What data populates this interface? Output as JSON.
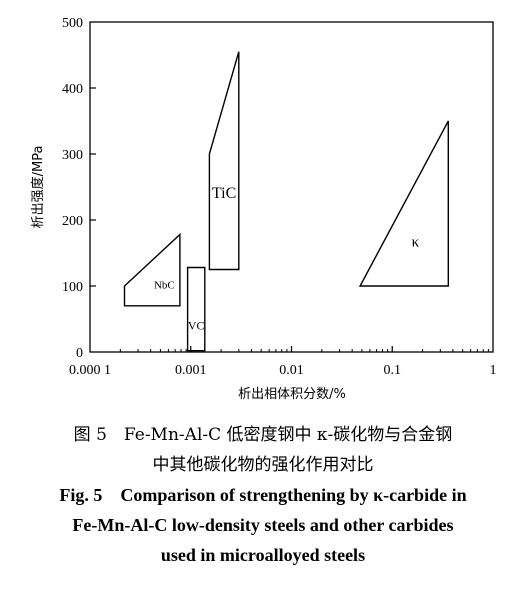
{
  "chart_data": {
    "type": "area",
    "title": "",
    "xlabel": "析出相体积分数/%",
    "ylabel": "析出强度/MPa",
    "x_scale": "log",
    "xlim": [
      0.0001,
      1
    ],
    "ylim": [
      0,
      500
    ],
    "x_ticks": [
      0.0001,
      0.001,
      0.01,
      0.1,
      1
    ],
    "x_tick_labels": [
      "0.000 1",
      "0.001",
      "0.01",
      "0.1",
      "1"
    ],
    "y_ticks": [
      0,
      100,
      200,
      300,
      400,
      500
    ],
    "y_tick_labels": [
      "0",
      "100",
      "200",
      "300",
      "400",
      "500"
    ],
    "grid": false,
    "legend": "none",
    "regions": [
      {
        "label": "NbC",
        "points": [
          [
            0.00022,
            100
          ],
          [
            0.00078,
            178
          ],
          [
            0.00078,
            70
          ],
          [
            0.00022,
            70
          ],
          [
            0.00022,
            100
          ]
        ]
      },
      {
        "label": "VC",
        "points": [
          [
            0.00093,
            128
          ],
          [
            0.00138,
            128
          ],
          [
            0.00138,
            2
          ],
          [
            0.00093,
            2
          ]
        ]
      },
      {
        "label": "TiC",
        "points": [
          [
            0.00153,
            300
          ],
          [
            0.003,
            455
          ],
          [
            0.003,
            125
          ],
          [
            0.00153,
            125
          ]
        ]
      },
      {
        "label": "κ",
        "points": [
          [
            0.048,
            100
          ],
          [
            0.36,
            350
          ],
          [
            0.36,
            100
          ]
        ]
      }
    ]
  },
  "caption": {
    "cn_line1": "图 5　Fe-Mn-Al-C 低密度钢中 κ-碳化物与合金钢",
    "cn_line2": "中其他碳化物的强化作用对比",
    "en_line1": "Fig. 5　Comparison of strengthening by κ-carbide in",
    "en_line2": "Fe-Mn-Al-C low-density steels and other carbides",
    "en_line3": "used in microalloyed steels"
  }
}
